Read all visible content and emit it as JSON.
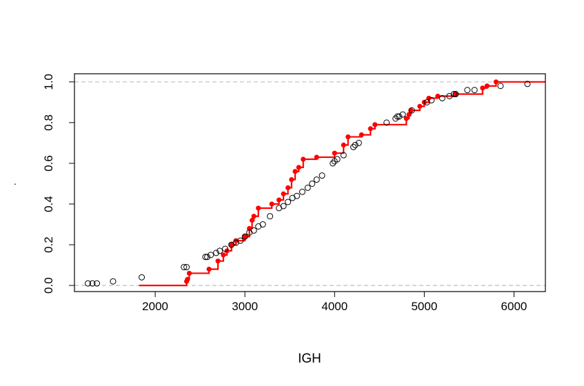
{
  "chart_data": {
    "type": "scatter",
    "title": "",
    "xlabel": "IGH",
    "ylabel": ".",
    "xlim": [
      1100,
      6350
    ],
    "ylim": [
      -0.03,
      1.04
    ],
    "x_ticks": [
      "2000",
      "3000",
      "4000",
      "5000",
      "6000"
    ],
    "y_ticks": [
      "0.0",
      "0.2",
      "0.4",
      "0.6",
      "0.8",
      "1.0"
    ],
    "grid": false,
    "reference_lines": [
      0,
      1
    ],
    "colors": {
      "step": "#ff0000",
      "empirical": "#000000",
      "reference": "#bebebe"
    },
    "series": [
      {
        "kind": "empirical-points",
        "points": [
          [
            1250,
            0.01
          ],
          [
            1300,
            0.01
          ],
          [
            1350,
            0.01
          ],
          [
            1530,
            0.02
          ],
          [
            1850,
            0.04
          ],
          [
            2320,
            0.09
          ],
          [
            2350,
            0.09
          ],
          [
            2560,
            0.14
          ],
          [
            2580,
            0.14
          ],
          [
            2620,
            0.15
          ],
          [
            2680,
            0.16
          ],
          [
            2720,
            0.17
          ],
          [
            2780,
            0.18
          ],
          [
            2850,
            0.2
          ],
          [
            2900,
            0.21
          ],
          [
            2950,
            0.22
          ],
          [
            3000,
            0.24
          ],
          [
            3050,
            0.26
          ],
          [
            3100,
            0.27
          ],
          [
            3150,
            0.29
          ],
          [
            3200,
            0.3
          ],
          [
            3280,
            0.34
          ],
          [
            3380,
            0.38
          ],
          [
            3430,
            0.39
          ],
          [
            3480,
            0.41
          ],
          [
            3530,
            0.43
          ],
          [
            3580,
            0.44
          ],
          [
            3640,
            0.46
          ],
          [
            3700,
            0.48
          ],
          [
            3750,
            0.5
          ],
          [
            3800,
            0.52
          ],
          [
            3860,
            0.54
          ],
          [
            3980,
            0.6
          ],
          [
            4000,
            0.61
          ],
          [
            4030,
            0.62
          ],
          [
            4100,
            0.64
          ],
          [
            4210,
            0.68
          ],
          [
            4230,
            0.69
          ],
          [
            4270,
            0.7
          ],
          [
            4580,
            0.8
          ],
          [
            4680,
            0.82
          ],
          [
            4700,
            0.83
          ],
          [
            4720,
            0.83
          ],
          [
            4760,
            0.84
          ],
          [
            4860,
            0.86
          ],
          [
            5030,
            0.9
          ],
          [
            5080,
            0.91
          ],
          [
            5200,
            0.92
          ],
          [
            5280,
            0.93
          ],
          [
            5330,
            0.94
          ],
          [
            5350,
            0.94
          ],
          [
            5480,
            0.96
          ],
          [
            5560,
            0.96
          ],
          [
            5850,
            0.98
          ],
          [
            6150,
            0.99
          ]
        ]
      },
      {
        "kind": "step",
        "steps": [
          [
            1820,
            0.0
          ],
          [
            2350,
            0.02
          ],
          [
            2360,
            0.03
          ],
          [
            2380,
            0.06
          ],
          [
            2600,
            0.08
          ],
          [
            2700,
            0.12
          ],
          [
            2760,
            0.15
          ],
          [
            2800,
            0.17
          ],
          [
            2850,
            0.2
          ],
          [
            2900,
            0.22
          ],
          [
            3000,
            0.24
          ],
          [
            3050,
            0.28
          ],
          [
            3080,
            0.32
          ],
          [
            3100,
            0.34
          ],
          [
            3150,
            0.38
          ],
          [
            3300,
            0.4
          ],
          [
            3380,
            0.42
          ],
          [
            3430,
            0.45
          ],
          [
            3480,
            0.48
          ],
          [
            3520,
            0.52
          ],
          [
            3560,
            0.56
          ],
          [
            3600,
            0.58
          ],
          [
            3650,
            0.62
          ],
          [
            3800,
            0.63
          ],
          [
            4000,
            0.65
          ],
          [
            4100,
            0.69
          ],
          [
            4150,
            0.73
          ],
          [
            4300,
            0.74
          ],
          [
            4400,
            0.77
          ],
          [
            4450,
            0.79
          ],
          [
            4800,
            0.82
          ],
          [
            4830,
            0.84
          ],
          [
            4850,
            0.86
          ],
          [
            4950,
            0.88
          ],
          [
            5000,
            0.9
          ],
          [
            5050,
            0.92
          ],
          [
            5150,
            0.93
          ],
          [
            5350,
            0.94
          ],
          [
            5650,
            0.97
          ],
          [
            5700,
            0.98
          ],
          [
            5800,
            1.0
          ],
          [
            6350,
            1.0
          ]
        ]
      }
    ]
  }
}
